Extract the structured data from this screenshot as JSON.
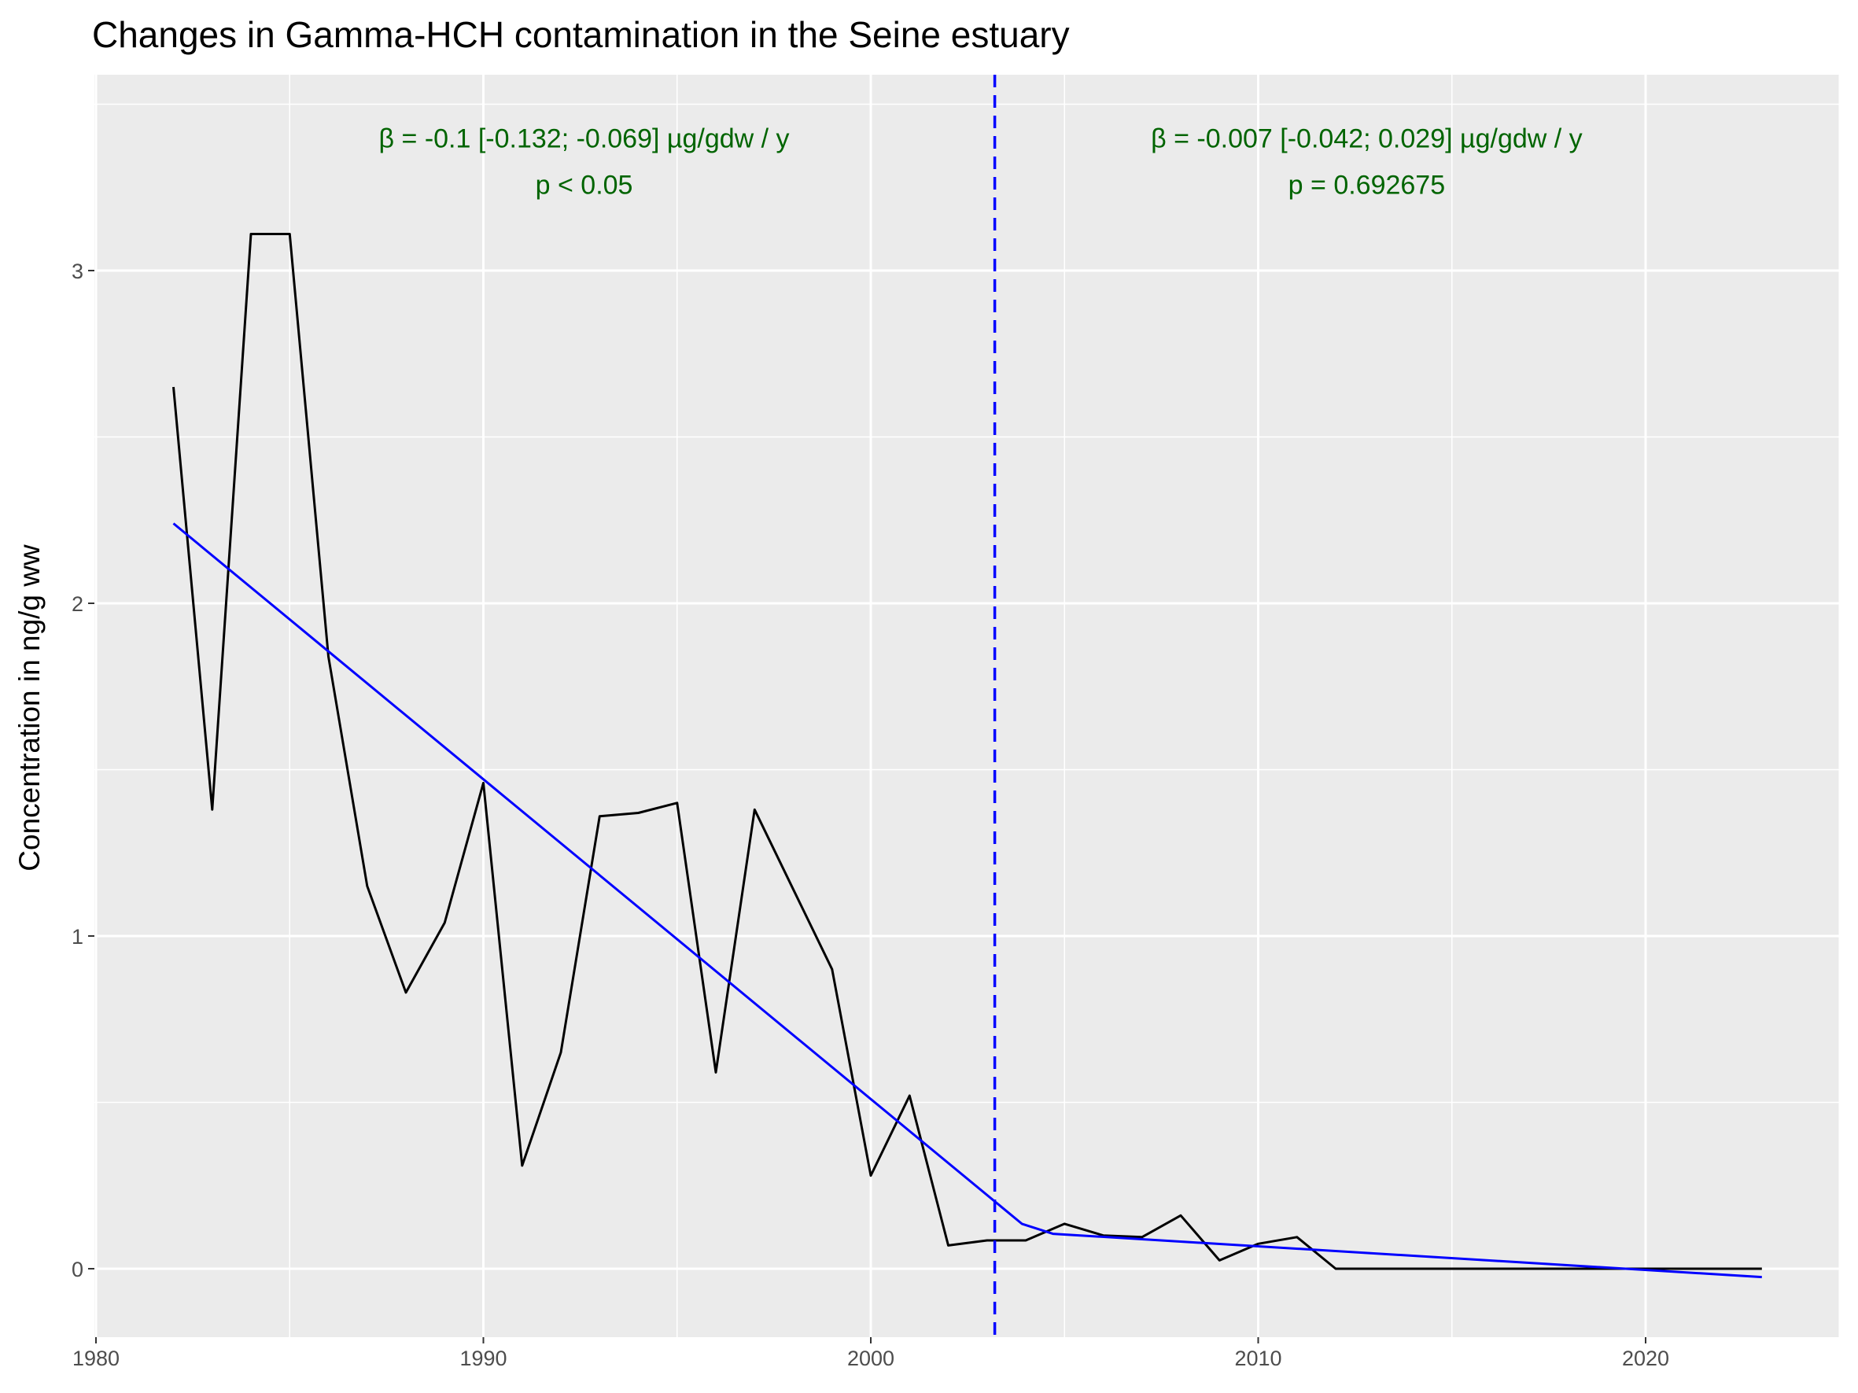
{
  "chart_data": {
    "type": "line",
    "title": "Changes in Gamma-HCH contamination in the Seine estuary",
    "xlabel": "",
    "ylabel": "Concentration in ng/g ww",
    "xlim": [
      1980,
      2025
    ],
    "ylim": [
      -0.2,
      3.6
    ],
    "x_ticks": [
      1980,
      1990,
      2000,
      2010,
      2020
    ],
    "y_ticks": [
      0,
      1,
      2,
      3
    ],
    "grid": true,
    "colors": {
      "panel_bg": "#EBEBEB",
      "grid": "#FFFFFF",
      "observed": "#000000",
      "trend": "#0000FF",
      "breakpoint": "#0000FF",
      "annotation": "#006400"
    },
    "series": [
      {
        "x": [
          1982,
          1983,
          1984,
          1985,
          1986,
          1987,
          1988,
          1989,
          1990,
          1991,
          1992,
          1993,
          1994,
          1995,
          1996,
          1997,
          1998,
          1999,
          2000,
          2001,
          2002,
          2003,
          2004,
          2005,
          2006,
          2007,
          2008,
          2009,
          2010,
          2011,
          2012,
          2013,
          2014,
          2015,
          2016,
          2017,
          2018,
          2019,
          2020,
          2021,
          2022,
          2023
        ],
        "values": [
          2.65,
          1.38,
          3.11,
          3.11,
          1.84,
          1.15,
          0.83,
          1.04,
          1.46,
          0.31,
          0.65,
          1.36,
          1.37,
          1.4,
          0.59,
          1.38,
          1.14,
          0.9,
          0.28,
          0.52,
          0.07,
          0.085,
          0.085,
          0.135,
          0.1,
          0.095,
          0.16,
          0.025,
          0.075,
          0.095,
          0.0,
          0.0,
          0.0,
          0.0,
          0.0,
          0.0,
          0.0,
          0.0,
          0.0,
          0.0,
          0.0,
          0.0
        ]
      },
      {
        "x": [
          1982,
          2003.9,
          2004.7,
          2023
        ],
        "values": [
          2.24,
          0.135,
          0.105,
          -0.025
        ]
      }
    ],
    "breakpoint_x": 2003.2,
    "annotations": [
      {
        "x": 1992.6,
        "y": 3.37,
        "text": "β = -0.1 [-0.132; -0.069] µg/gdw / y"
      },
      {
        "x": 1992.6,
        "y": 3.23,
        "text": "p < 0.05"
      },
      {
        "x": 2012.8,
        "y": 3.37,
        "text": "β = -0.007 [-0.042; 0.029] µg/gdw / y"
      },
      {
        "x": 2012.8,
        "y": 3.23,
        "text": "p = 0.692675"
      }
    ]
  }
}
